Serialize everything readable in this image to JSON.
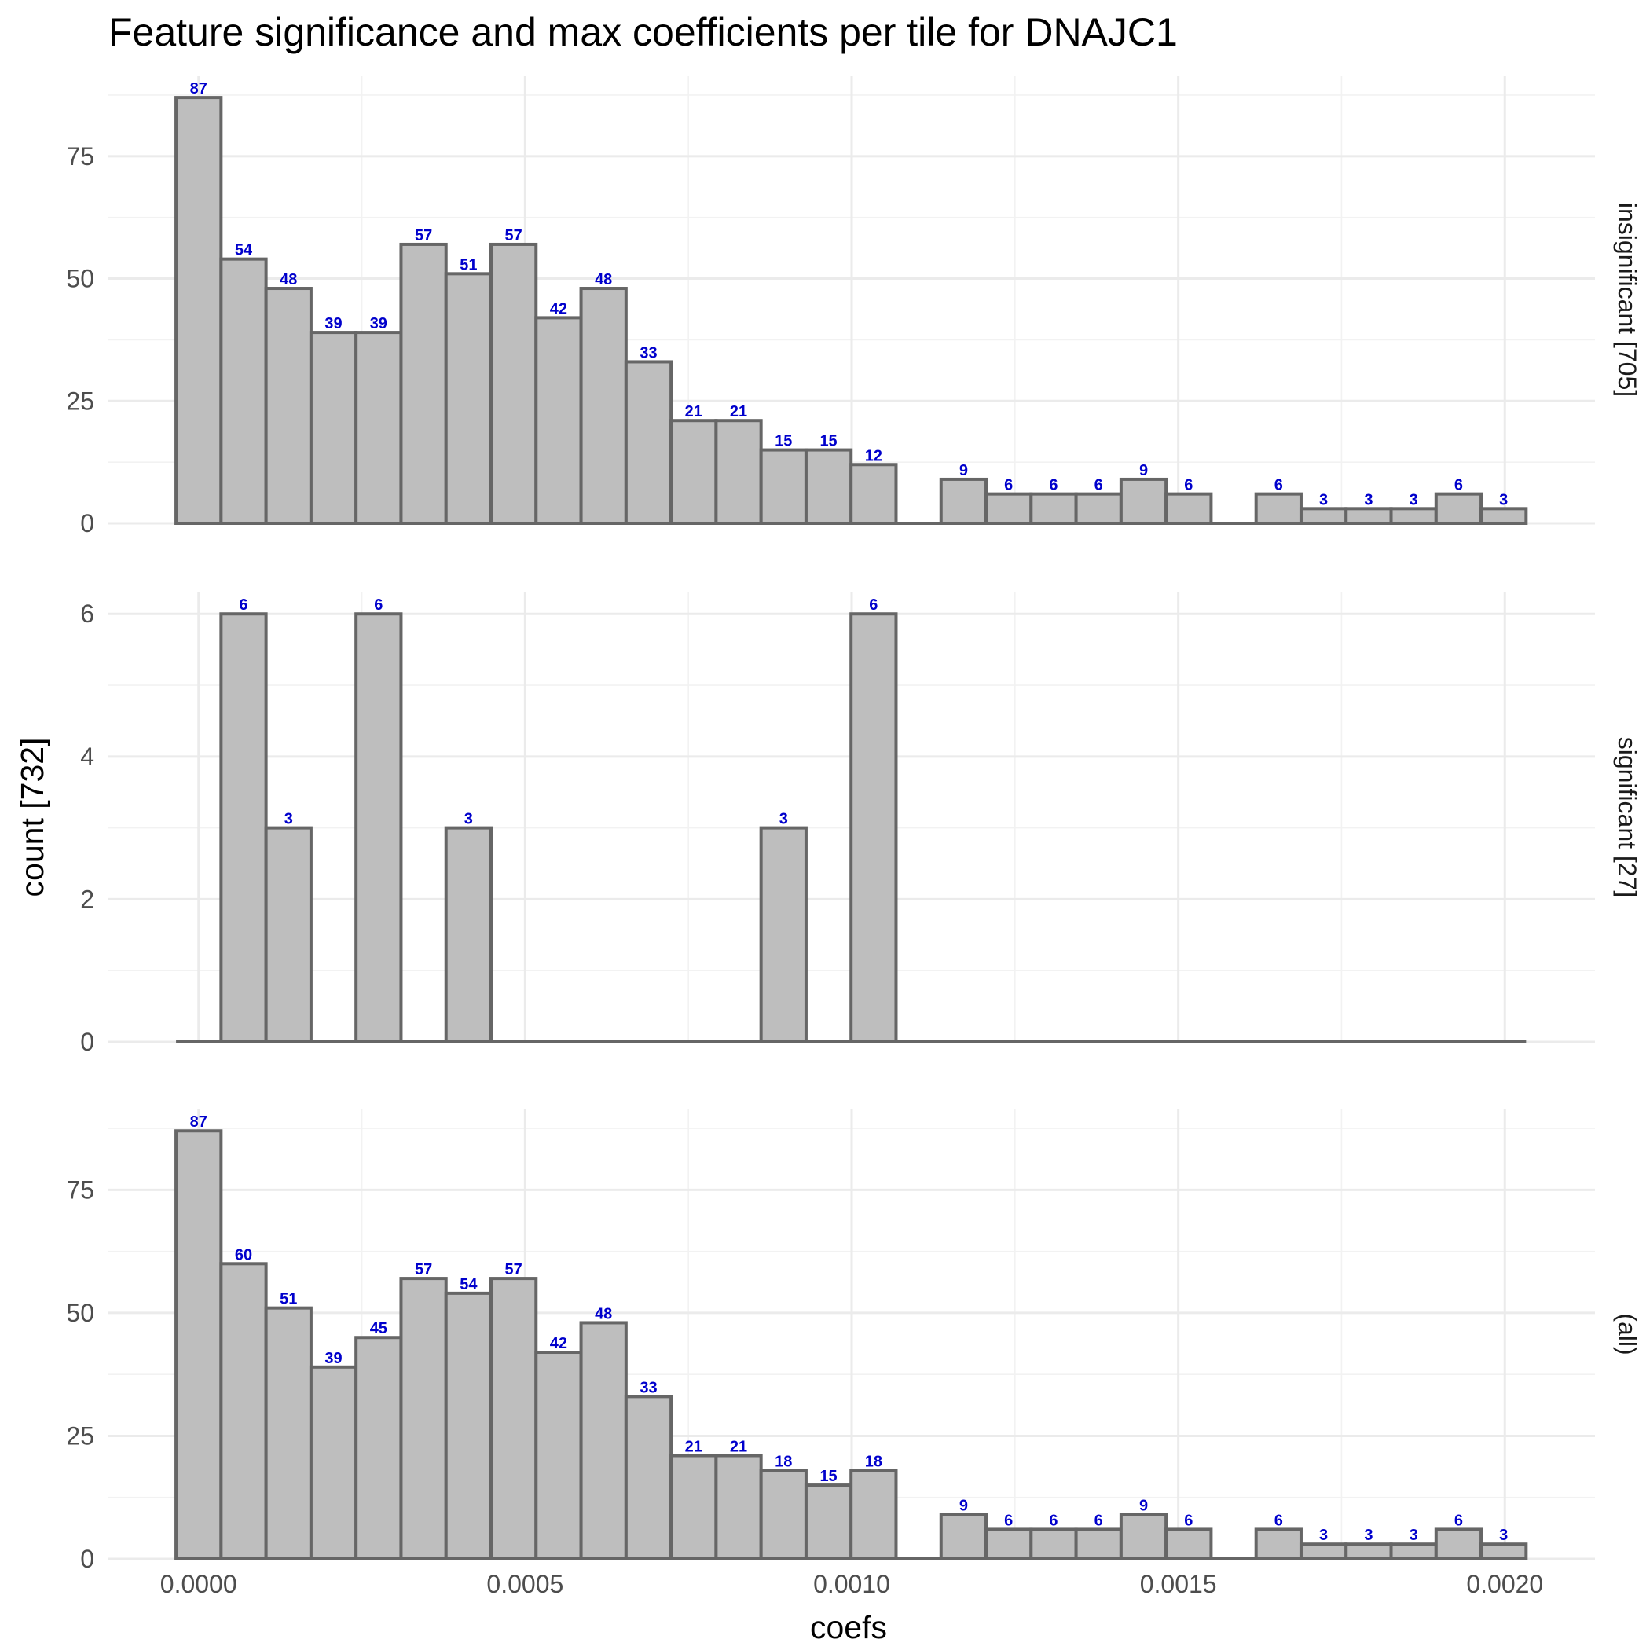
{
  "chart_data": {
    "type": "bar",
    "title": "Feature significance and max coefficients per tile for DNAJC1",
    "xlabel": "coefs",
    "ylabel": "count [732]",
    "x_ticks": [
      {
        "value": 0.0,
        "label": "0.0000"
      },
      {
        "value": 0.0005,
        "label": "0.0005"
      },
      {
        "value": 0.001,
        "label": "0.0010"
      },
      {
        "value": 0.0015,
        "label": "0.0015"
      },
      {
        "value": 0.002,
        "label": "0.0020"
      }
    ],
    "xlim": [
      -0.000138,
      0.002138
    ],
    "bin_width": 6.89e-05,
    "bin_centers": [
      0.0,
      6.89e-05,
      0.0001378,
      0.0002067,
      0.0002756,
      0.0003445,
      0.0004134,
      0.0004823,
      0.0005512,
      0.0006201,
      0.000689,
      0.0007579,
      0.0008268,
      0.0008957,
      0.0009646,
      0.0010335,
      0.0011024,
      0.0011713,
      0.0012402,
      0.0013091,
      0.001378,
      0.0014469,
      0.0015158,
      0.0015847,
      0.0016536,
      0.0017225,
      0.0017914,
      0.0018603,
      0.0019292,
      0.0019981
    ],
    "grid": true,
    "label_color": "#0000cc",
    "bar_fill": "#bebebe",
    "bar_outline": "#666666",
    "panels": [
      {
        "strip": "insignificant [705]",
        "ylim": [
          0,
          91.35
        ],
        "y_ticks": [
          0,
          25,
          50,
          75
        ],
        "values": [
          87,
          54,
          48,
          39,
          39,
          57,
          51,
          57,
          42,
          48,
          33,
          21,
          21,
          15,
          15,
          12,
          0,
          9,
          6,
          6,
          6,
          9,
          6,
          0,
          6,
          3,
          3,
          3,
          6,
          3
        ]
      },
      {
        "strip": "significant [27]",
        "ylim": [
          0,
          6.3
        ],
        "y_ticks": [
          0,
          2,
          4,
          6
        ],
        "values": [
          0,
          6,
          3,
          0,
          6,
          0,
          3,
          0,
          0,
          0,
          0,
          0,
          0,
          3,
          0,
          6,
          0,
          0,
          0,
          0,
          0,
          0,
          0,
          0,
          0,
          0,
          0,
          0,
          0,
          0
        ]
      },
      {
        "strip": "(all)",
        "ylim": [
          0,
          91.35
        ],
        "y_ticks": [
          0,
          25,
          50,
          75
        ],
        "values": [
          87,
          60,
          51,
          39,
          45,
          57,
          54,
          57,
          42,
          48,
          33,
          21,
          21,
          18,
          15,
          18,
          0,
          9,
          6,
          6,
          6,
          9,
          6,
          0,
          6,
          3,
          3,
          3,
          6,
          3
        ]
      }
    ]
  }
}
